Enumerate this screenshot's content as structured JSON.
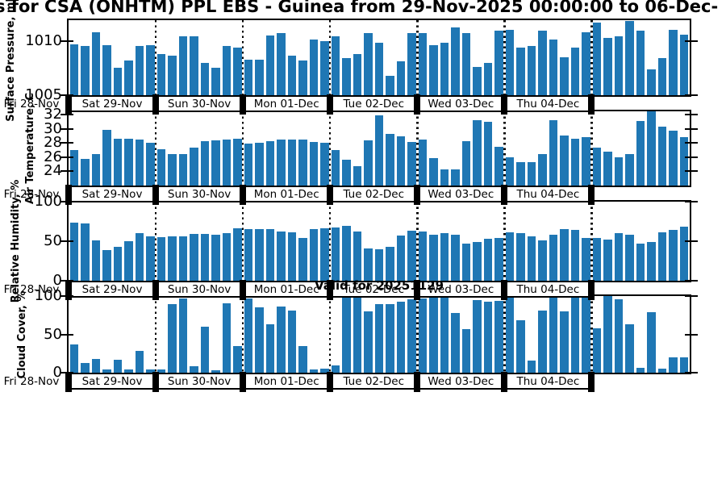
{
  "figure": {
    "title": "s for CSA (ONHTM) PPL EBS  - Guinea from 29-Nov-2025 00:00:00 to 06-Dec-",
    "valid_label": "Valid for 20251129",
    "bar_color": "#1f77b4",
    "axis_color": "#000000"
  },
  "x_axis": {
    "left_edge_label": "Fri 28-Nov",
    "day_labels": [
      "Sat 29-Nov",
      "Sun 30-Nov",
      "Mon 01-Dec",
      "Tue 02-Dec",
      "Wed 03-Dec",
      "Thu 04-Dec"
    ],
    "bars_per_day": 8
  },
  "chart_data": [
    {
      "type": "bar",
      "name": "surface-pressure",
      "ylabel": "Surface Pressure, mb",
      "ylim": [
        1005,
        1011.9
      ],
      "yticks": [
        1005,
        1010
      ],
      "values": [
        1009.7,
        1009.5,
        1010.8,
        1009.6,
        1007.5,
        1008.2,
        1009.5,
        1009.6,
        1008.8,
        1008.6,
        1010.4,
        1010.4,
        1008.0,
        1007.5,
        1009.5,
        1009.4,
        1008.3,
        1008.3,
        1010.5,
        1010.7,
        1008.6,
        1008.2,
        1010.1,
        1010.0,
        1010.4,
        1008.4,
        1008.8,
        1010.7,
        1009.8,
        1006.8,
        1008.1,
        1010.7,
        1010.7,
        1009.6,
        1009.8,
        1011.2,
        1010.7,
        1007.6,
        1008.0,
        1010.9,
        1011.0,
        1009.4,
        1009.5,
        1010.9,
        1010.1,
        1008.5,
        1009.4,
        1010.8,
        1011.7,
        1010.3,
        1010.4,
        1011.8,
        1010.9,
        1007.4,
        1008.4,
        1011.0,
        1010.6
      ]
    },
    {
      "type": "bar",
      "name": "air-temperature",
      "ylabel": "Air Temperature, C",
      "ylim": [
        22,
        32.5
      ],
      "yticks": [
        24,
        26,
        28,
        30,
        32
      ],
      "values": [
        27.0,
        25.8,
        26.4,
        29.9,
        28.6,
        28.6,
        28.5,
        28.1,
        27.1,
        26.4,
        26.5,
        27.4,
        28.3,
        28.4,
        28.5,
        28.6,
        27.9,
        28.0,
        28.3,
        28.5,
        28.5,
        28.5,
        28.2,
        28.0,
        27.0,
        25.7,
        24.7,
        28.4,
        31.9,
        29.3,
        29.0,
        28.2,
        28.5,
        25.9,
        24.3,
        24.3,
        28.3,
        31.2,
        31.0,
        27.5,
        26.0,
        25.3,
        25.3,
        26.4,
        31.3,
        29.1,
        28.6,
        28.9,
        27.4,
        26.8,
        26.0,
        26.5,
        31.1,
        32.9,
        30.3,
        29.8,
        28.9
      ]
    },
    {
      "type": "bar",
      "name": "relative-humidity",
      "ylabel": "Relative Humidity, %",
      "ylim": [
        0,
        100
      ],
      "yticks": [
        0,
        50,
        100
      ],
      "values": [
        73,
        72,
        51,
        39,
        43,
        50,
        60,
        56,
        55,
        56,
        56,
        59,
        59,
        58,
        60,
        66,
        65,
        65,
        65,
        62,
        61,
        54,
        65,
        66,
        67,
        69,
        62,
        41,
        40,
        43,
        57,
        63,
        62,
        58,
        60,
        58,
        47,
        49,
        53,
        54,
        61,
        60,
        56,
        51,
        58,
        65,
        64,
        54,
        54,
        52,
        60,
        58,
        47,
        49,
        61,
        64,
        68
      ]
    },
    {
      "type": "bar",
      "name": "cloud-cover",
      "ylabel": "Cloud Cover, %",
      "ylim": [
        0,
        100
      ],
      "yticks": [
        0,
        50,
        100
      ],
      "values": [
        37,
        13,
        18,
        4,
        17,
        4,
        28,
        4,
        4,
        90,
        97,
        8,
        60,
        3,
        91,
        35,
        97,
        85,
        63,
        86,
        81,
        35,
        4,
        5,
        9,
        100,
        100,
        80,
        90,
        90,
        93,
        96,
        97,
        100,
        100,
        78,
        57,
        95,
        93,
        94,
        100,
        68,
        16,
        81,
        98,
        80,
        100,
        100,
        58,
        100,
        96,
        63,
        6,
        79,
        5,
        20,
        20
      ]
    }
  ]
}
